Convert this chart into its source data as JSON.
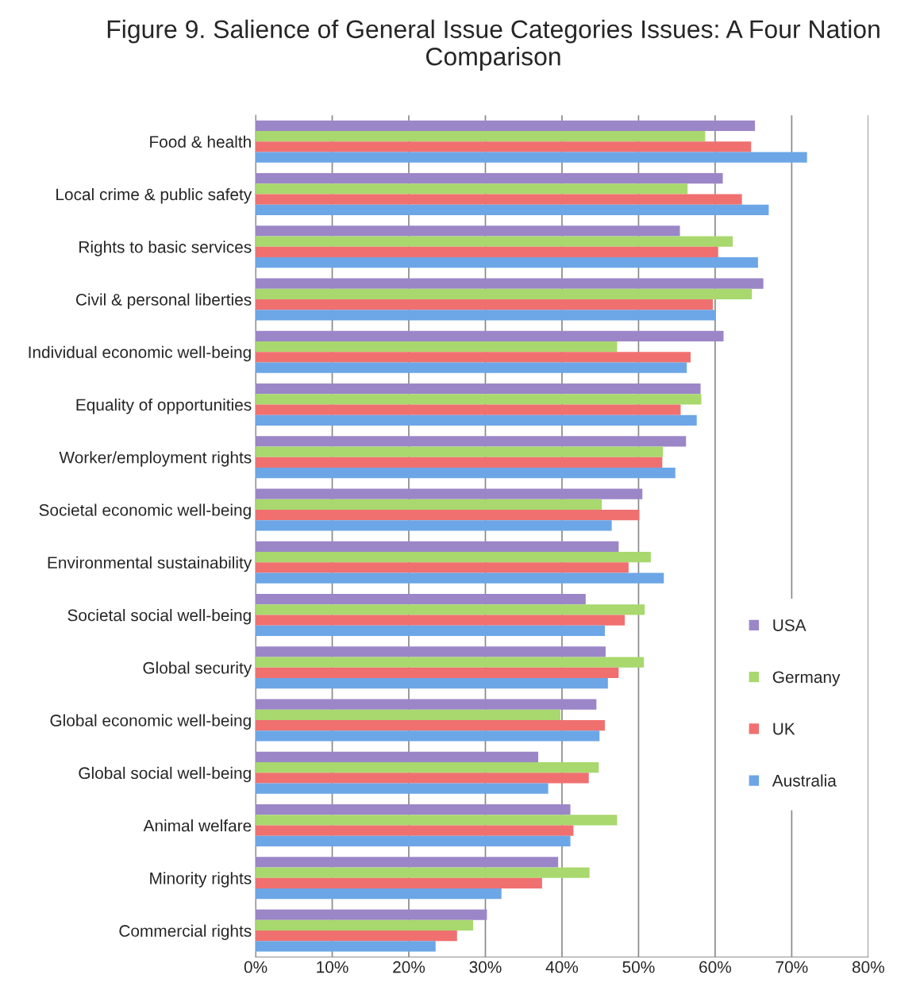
{
  "chart_data": {
    "type": "bar",
    "orientation": "horizontal",
    "title": "Figure 9. Salience of General Issue Categories Issues: A Four Nation Comparison",
    "categories": [
      "Food & health",
      "Local crime & public safety",
      "Rights to basic services",
      "Civil & personal liberties",
      "Individual economic well-being",
      "Equality of opportunities",
      "Worker/employment rights",
      "Societal economic well-being",
      "Environmental sustainability",
      "Societal social well-being",
      "Global security",
      "Global economic well-being",
      "Global social well-being",
      "Animal welfare",
      "Minority rights",
      "Commercial rights"
    ],
    "series": [
      {
        "name": "USA",
        "color": "#9b86c8",
        "values": [
          65.2,
          61.0,
          55.4,
          66.3,
          61.1,
          58.1,
          56.2,
          50.5,
          47.4,
          43.1,
          45.7,
          44.5,
          36.9,
          41.1,
          39.5,
          30.2
        ]
      },
      {
        "name": "Germany",
        "color": "#a9d86e",
        "values": [
          58.7,
          56.4,
          62.3,
          64.8,
          47.2,
          58.2,
          53.2,
          45.2,
          51.6,
          50.8,
          50.7,
          39.8,
          44.8,
          47.2,
          43.6,
          28.4
        ]
      },
      {
        "name": "UK",
        "color": "#f07070",
        "values": [
          64.7,
          63.5,
          60.4,
          59.7,
          56.8,
          55.5,
          53.1,
          50.1,
          48.7,
          48.2,
          47.4,
          45.6,
          43.5,
          41.5,
          37.4,
          26.3
        ]
      },
      {
        "name": "Australia",
        "color": "#6ca6e6",
        "values": [
          72.0,
          67.0,
          65.6,
          60.1,
          56.3,
          57.6,
          54.8,
          46.5,
          53.3,
          45.6,
          46.0,
          44.9,
          38.2,
          41.1,
          32.1,
          23.5
        ]
      }
    ],
    "xlim": [
      0,
      80
    ],
    "xticks": [
      {
        "value": 0,
        "label": "0%"
      },
      {
        "value": 10,
        "label": "10%"
      },
      {
        "value": 20,
        "label": "20%"
      },
      {
        "value": 30,
        "label": "30%"
      },
      {
        "value": 40,
        "label": "40%"
      },
      {
        "value": 50,
        "label": "50%"
      },
      {
        "value": 60,
        "label": "60%"
      },
      {
        "value": 70,
        "label": "70%"
      },
      {
        "value": 80,
        "label": "80%"
      }
    ],
    "grid": "x",
    "legend": "center right"
  }
}
